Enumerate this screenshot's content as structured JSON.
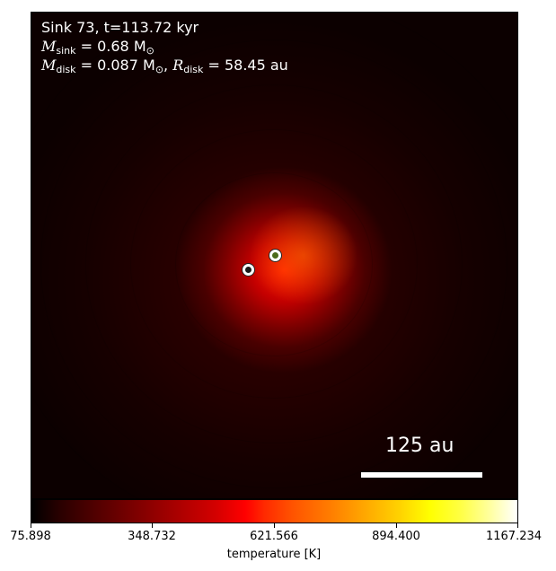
{
  "panel": {
    "title": "Sink 73, t=113.72 kyr",
    "m_sink_symbol": "M",
    "m_sink_sub": "sink",
    "m_sink_value": " = 0.68 M",
    "m_sink_unit_sub": "⊙",
    "m_disk_symbol": "M",
    "m_disk_sub": "disk",
    "m_disk_value": " = 0.087 M",
    "m_disk_unit_sub": "⊙",
    "r_disk_symbol": "R",
    "r_disk_sub": "disk",
    "r_disk_value": " = 58.45 au"
  },
  "scale_bar": {
    "label": "125 au"
  },
  "colorbar": {
    "label": "temperature [K]",
    "ticks": [
      "75.898",
      "348.732",
      "621.566",
      "894.400",
      "1167.234"
    ],
    "colormap": "hot"
  },
  "sinks": [
    {
      "name": "sink-primary",
      "fill": "#1a1a1a"
    },
    {
      "name": "sink-secondary",
      "fill": "#4a6a1a"
    }
  ]
}
